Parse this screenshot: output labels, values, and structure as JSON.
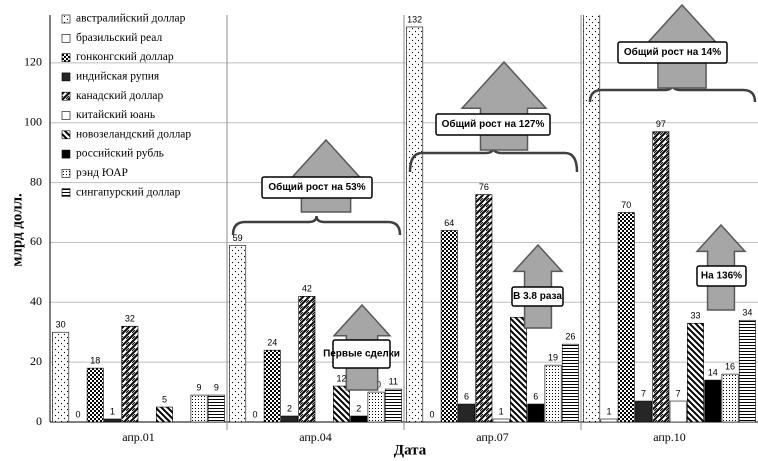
{
  "chart_data": {
    "type": "bar",
    "y_label": "млрд долл.",
    "x_label": "Дата",
    "categories": [
      "апр.01",
      "апр.04",
      "апр.07",
      "апр.10"
    ],
    "ylim": [
      0,
      136
    ],
    "yticks": [
      0,
      20,
      40,
      60,
      80,
      100,
      120
    ],
    "grid": true,
    "legend": "top-left",
    "series": [
      {
        "name": "австралийский доллар",
        "color": "#000000",
        "values": [
          30,
          59,
          132,
          140
        ],
        "value_labels": [
          "30",
          "59",
          "132",
          null
        ]
      },
      {
        "name": "бразильский реал",
        "color": "#000000",
        "values": [
          0,
          0,
          0,
          1
        ]
      },
      {
        "name": "гонконгский доллар",
        "color": "#000000",
        "values": [
          18,
          24,
          64,
          70
        ]
      },
      {
        "name": "индийская рупия",
        "color": "#000000",
        "values": [
          1,
          2,
          6,
          7
        ]
      },
      {
        "name": "канадский доллар",
        "color": "#000000",
        "values": [
          32,
          42,
          76,
          97
        ]
      },
      {
        "name": "китайский юань",
        "color": "#000000",
        "values": [
          null,
          null,
          1,
          7
        ]
      },
      {
        "name": "новозеландский доллар",
        "color": "#000000",
        "values": [
          5,
          12,
          35,
          33
        ],
        "value_labels": [
          "5",
          "12",
          null,
          "33"
        ]
      },
      {
        "name": "российский рубль",
        "color": "#000000",
        "values": [
          null,
          2,
          6,
          14
        ]
      },
      {
        "name": "рэнд ЮАР",
        "color": "#000000",
        "values": [
          9,
          10,
          19,
          16
        ]
      },
      {
        "name": "сингапурский доллар",
        "color": "#000000",
        "values": [
          9,
          11,
          26,
          34
        ]
      }
    ],
    "annotations": [
      "Общий рост на 53%",
      "Общий рост на 127%",
      "Общий рост на 14%",
      "Первые сделки",
      "В 3.8 раза",
      "На 136%"
    ]
  }
}
